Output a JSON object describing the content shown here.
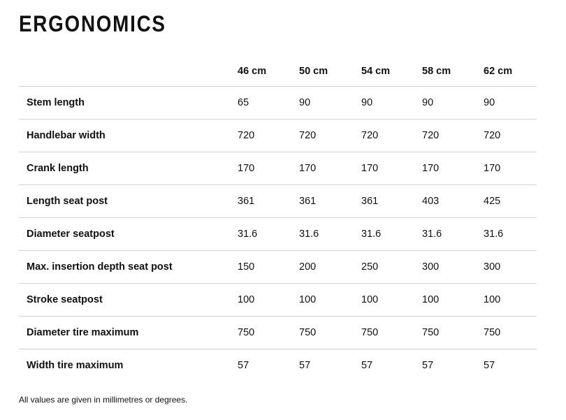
{
  "page": {
    "title": "ERGONOMICS",
    "footnote": "All values are given in millimetres or degrees."
  },
  "table": {
    "columns": [
      "46 cm",
      "50 cm",
      "54 cm",
      "58 cm",
      "62 cm"
    ],
    "rows": [
      {
        "label": "Stem length",
        "values": [
          "65",
          "90",
          "90",
          "90",
          "90"
        ]
      },
      {
        "label": "Handlebar width",
        "values": [
          "720",
          "720",
          "720",
          "720",
          "720"
        ]
      },
      {
        "label": "Crank length",
        "values": [
          "170",
          "170",
          "170",
          "170",
          "170"
        ]
      },
      {
        "label": "Length seat post",
        "values": [
          "361",
          "361",
          "361",
          "403",
          "425"
        ]
      },
      {
        "label": "Diameter seatpost",
        "values": [
          "31.6",
          "31.6",
          "31.6",
          "31.6",
          "31.6"
        ]
      },
      {
        "label": "Max. insertion depth seat post",
        "values": [
          "150",
          "200",
          "250",
          "300",
          "300"
        ]
      },
      {
        "label": "Stroke seatpost",
        "values": [
          "100",
          "100",
          "100",
          "100",
          "100"
        ]
      },
      {
        "label": "Diameter tire maximum",
        "values": [
          "750",
          "750",
          "750",
          "750",
          "750"
        ]
      },
      {
        "label": "Width tire maximum",
        "values": [
          "57",
          "57",
          "57",
          "57",
          "57"
        ]
      }
    ]
  },
  "colors": {
    "text": "#111111",
    "divider": "#d2d2d2",
    "background": "#ffffff"
  }
}
